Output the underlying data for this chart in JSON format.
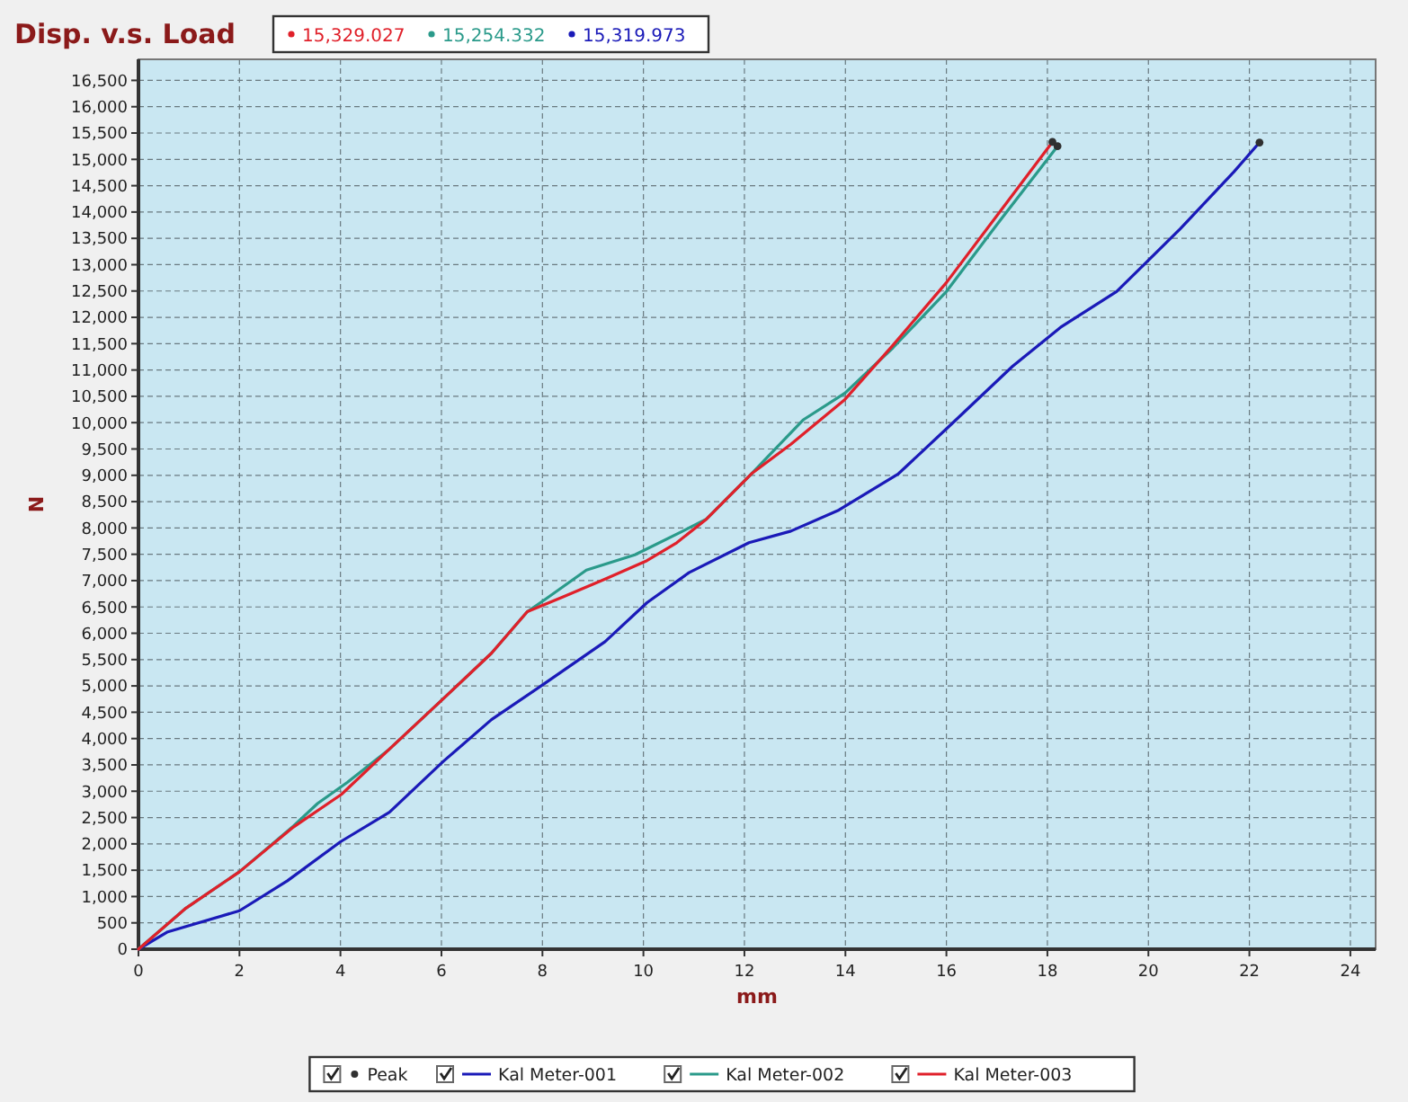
{
  "chart_data": {
    "type": "line",
    "title": "Disp. v.s. Load",
    "xlabel": "mm",
    "ylabel": "N",
    "xlim": [
      0,
      24.5
    ],
    "ylim": [
      0,
      16900
    ],
    "xticks": [
      0,
      2,
      4,
      6,
      8,
      10,
      12,
      14,
      16,
      18,
      20,
      22,
      24
    ],
    "yticks": [
      {
        "value": 0,
        "label": "0"
      },
      {
        "value": 500,
        "label": "500"
      },
      {
        "value": 1000,
        "label": "1,000"
      },
      {
        "value": 1500,
        "label": "1,500"
      },
      {
        "value": 2000,
        "label": "2,000"
      },
      {
        "value": 2500,
        "label": "2,500"
      },
      {
        "value": 3000,
        "label": "3,000"
      },
      {
        "value": 3500,
        "label": "3,500"
      },
      {
        "value": 4000,
        "label": "4,000"
      },
      {
        "value": 4500,
        "label": "4,500"
      },
      {
        "value": 5000,
        "label": "5,000"
      },
      {
        "value": 5500,
        "label": "5,500"
      },
      {
        "value": 6000,
        "label": "6,000"
      },
      {
        "value": 6500,
        "label": "6,500"
      },
      {
        "value": 7000,
        "label": "7,000"
      },
      {
        "value": 7500,
        "label": "7,500"
      },
      {
        "value": 8000,
        "label": "8,000"
      },
      {
        "value": 8500,
        "label": "8,500"
      },
      {
        "value": 9000,
        "label": "9,000"
      },
      {
        "value": 9500,
        "label": "9,500"
      },
      {
        "value": 10000,
        "label": "10,000"
      },
      {
        "value": 10500,
        "label": "10,500"
      },
      {
        "value": 11000,
        "label": "11,000"
      },
      {
        "value": 11500,
        "label": "11,500"
      },
      {
        "value": 12000,
        "label": "12,000"
      },
      {
        "value": 12500,
        "label": "12,500"
      },
      {
        "value": 13000,
        "label": "13,000"
      },
      {
        "value": 13500,
        "label": "13,500"
      },
      {
        "value": 14000,
        "label": "14,000"
      },
      {
        "value": 14500,
        "label": "14,500"
      },
      {
        "value": 15000,
        "label": "15,000"
      },
      {
        "value": 15500,
        "label": "15,500"
      },
      {
        "value": 16000,
        "label": "16,000"
      },
      {
        "value": 16500,
        "label": "16,500"
      }
    ],
    "grid": true,
    "legend": "bottom",
    "line_style": "solid",
    "series": [
      {
        "name": "Peak",
        "type": "scatter",
        "marker": "circle",
        "color": "#303030",
        "x": [
          18.1,
          18.2,
          22.2
        ],
        "values": [
          15330,
          15250,
          15320
        ]
      },
      {
        "name": "Kal Meter-001",
        "color": "#1a1ab8",
        "x": [
          0,
          0.58,
          2.0,
          2.95,
          4.0,
          4.97,
          6.04,
          6.99,
          8.05,
          9.24,
          10.07,
          10.9,
          12.09,
          12.92,
          13.87,
          15.05,
          16.12,
          17.31,
          18.26,
          19.37,
          20.63,
          21.69,
          22.2
        ],
        "values": [
          0,
          330,
          730,
          1300,
          2040,
          2600,
          3570,
          4360,
          5050,
          5840,
          6580,
          7150,
          7720,
          7940,
          8340,
          9030,
          9990,
          11070,
          11810,
          12490,
          13680,
          14760,
          15320
        ]
      },
      {
        "name": "Kal Meter-002",
        "color": "#2a9a8a",
        "x": [
          0,
          0.94,
          2.0,
          3.07,
          3.55,
          4.14,
          4.97,
          6.04,
          6.99,
          7.7,
          8.05,
          8.87,
          9.83,
          10.78,
          11.25,
          12.14,
          13.16,
          13.99,
          14.94,
          16.0,
          17.07,
          18.2
        ],
        "values": [
          0,
          780,
          1470,
          2340,
          2770,
          3170,
          3800,
          4760,
          5620,
          6410,
          6640,
          7200,
          7490,
          7940,
          8170,
          9030,
          10050,
          10560,
          11420,
          12490,
          13850,
          15250
        ]
      },
      {
        "name": "Kal Meter-003",
        "color": "#e0202a",
        "x": [
          0,
          0.94,
          2.0,
          3.07,
          4.02,
          4.97,
          6.04,
          6.99,
          7.7,
          8.41,
          9.24,
          10.07,
          10.66,
          11.25,
          12.14,
          12.92,
          13.99,
          14.94,
          16.0,
          17.07,
          18.1
        ],
        "values": [
          0,
          780,
          1470,
          2320,
          2940,
          3800,
          4760,
          5620,
          6410,
          6690,
          7030,
          7380,
          7720,
          8170,
          9030,
          9590,
          10440,
          11470,
          12660,
          14020,
          15330
        ]
      }
    ],
    "annotations": [
      "15,329.027",
      "15,254.332",
      "15,319.973"
    ]
  }
}
